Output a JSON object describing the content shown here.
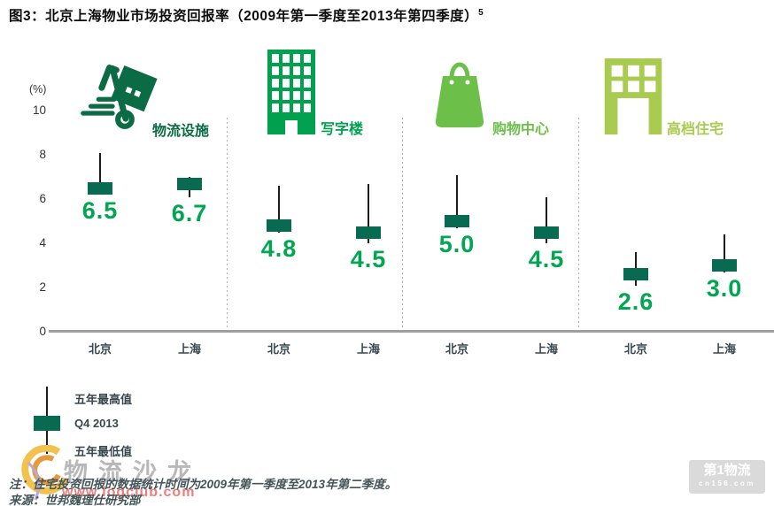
{
  "title": {
    "text": "图3：北京上海物业市场投资回报率（2009年第一季度至2013年第四季度）",
    "superscript": "5"
  },
  "axis": {
    "unit_label": "(%)",
    "yticks": [
      "10",
      "8",
      "6",
      "4",
      "2",
      "0"
    ]
  },
  "chart_data": {
    "type": "candlestick",
    "title": "北京上海物业市场投资回报率（2009年第一季度至2013年第四季度）",
    "ylabel": "(%)",
    "ylim": [
      0,
      10
    ],
    "yticks": [
      0,
      2,
      4,
      6,
      8,
      10
    ],
    "grid": false,
    "legend_position": "bottom-left",
    "legend": [
      "五年最高值",
      "Q4 2013",
      "五年最低值"
    ],
    "categories": [
      "北京",
      "上海"
    ],
    "groups": [
      {
        "name": "物流设施",
        "icon": "hand-truck-icon",
        "color": "#0B6B45",
        "points": [
          {
            "city": "北京",
            "five_year_max": 8.1,
            "q4_2013": 6.5,
            "five_year_min": 6.2
          },
          {
            "city": "上海",
            "five_year_max": 7.0,
            "q4_2013": 6.7,
            "five_year_min": 6.1
          }
        ]
      },
      {
        "name": "写字楼",
        "icon": "office-building-icon",
        "color": "#00A14E",
        "points": [
          {
            "city": "北京",
            "five_year_max": 6.6,
            "q4_2013": 4.8,
            "five_year_min": 4.5
          },
          {
            "city": "上海",
            "five_year_max": 6.7,
            "q4_2013": 4.5,
            "five_year_min": 4.0
          }
        ]
      },
      {
        "name": "购物中心",
        "icon": "shopping-bag-icon",
        "color": "#6CC04A",
        "points": [
          {
            "city": "北京",
            "five_year_max": 7.1,
            "q4_2013": 5.0,
            "five_year_min": 4.7
          },
          {
            "city": "上海",
            "five_year_max": 6.1,
            "q4_2013": 4.5,
            "five_year_min": 4.0
          }
        ]
      },
      {
        "name": "高档住宅",
        "icon": "residential-building-icon",
        "color": "#A9CB50",
        "points": [
          {
            "city": "北京",
            "five_year_max": 3.6,
            "q4_2013": 2.6,
            "five_year_min": 2.1
          },
          {
            "city": "上海",
            "five_year_max": 4.4,
            "q4_2013": 3.0,
            "five_year_min": 2.7
          }
        ]
      }
    ]
  },
  "legend": {
    "max_label": "五年最高值",
    "current_label": "Q4 2013",
    "min_label": "五年最低值"
  },
  "notes": {
    "note": "注：住宅投资回报的数据统计时间为2009年第一季度至2013年第二季度。",
    "source": "来源：世邦魏理仕研究部"
  },
  "watermarks": {
    "center": {
      "name": "物流沙龙",
      "url": "www.logclub.com"
    },
    "bottom_right": {
      "name": "第1物流",
      "url": "cn156.com"
    }
  },
  "colors": {
    "value_text": "#00A651",
    "q4_box": "#086A50",
    "whisker": "#1c1c1c",
    "logistics": "#0B6B45",
    "office": "#00A14E",
    "shopping": "#6CC04A",
    "residential": "#A9CB50"
  }
}
